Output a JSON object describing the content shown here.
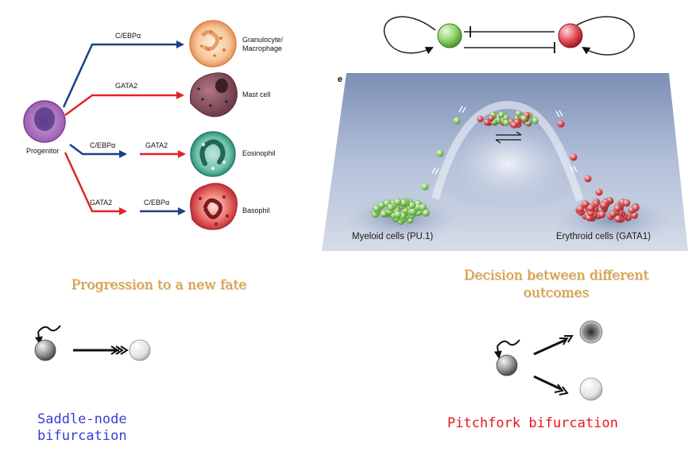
{
  "lineage": {
    "progenitor": "Progenitor",
    "cells": [
      {
        "label": "Granulocyte/\nMacrophage",
        "factor": "C/EBPα"
      },
      {
        "label": "Mast cell",
        "factor": "GATA2"
      },
      {
        "label": "Eosinophil",
        "factor_first": "C/EBPα",
        "factor_second": "GATA2"
      },
      {
        "label": "Basophil",
        "factor_first": "GATA2",
        "factor_second": "C/EBPα"
      }
    ]
  },
  "landscape": {
    "panel_letter": "e",
    "left_basin": "Myeloid cells (PU.1)",
    "right_basin": "Erythroid cells (GATA1)"
  },
  "captions": {
    "left_title": "Progression to a new fate",
    "right_title_line1": "Decision between different",
    "right_title_line2": "outcomes",
    "left_bifurcation_line1": "Saddle-node",
    "left_bifurcation_line2": "bifurcation",
    "right_bifurcation": "Pitchfork bifurcation"
  },
  "colors": {
    "blue_arrow": "#1a3f8a",
    "red_arrow": "#e0232a",
    "caption_orange": "#e39a2a",
    "saddle_blue": "#3b3bd6",
    "pitchfork_red": "#e8141c"
  }
}
